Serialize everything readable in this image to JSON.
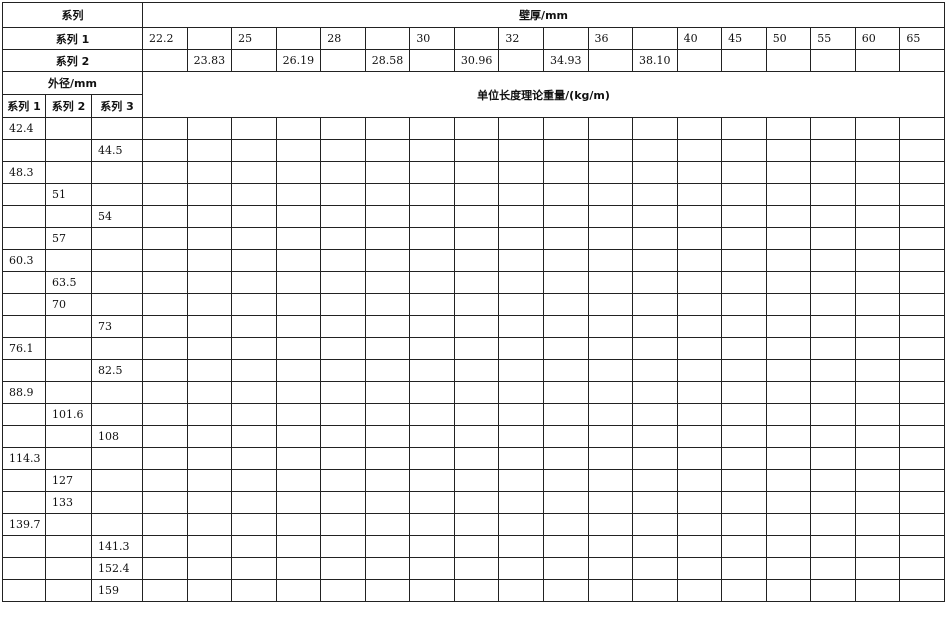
{
  "header": {
    "series_label": "系列",
    "wall_thickness_label": "壁厚/mm",
    "series1_label": "系列 1",
    "series2_label": "系列 2",
    "outer_diameter_label": "外径/mm",
    "weight_label": "单位长度理论重量/(kg/m)",
    "od_series_labels": [
      "系列 1",
      "系列 2",
      "系列 3"
    ]
  },
  "wall_thickness": {
    "series1": [
      "22.2",
      "",
      "25",
      "",
      "28",
      "",
      "30",
      "",
      "32",
      "",
      "36",
      "",
      "40",
      "45",
      "50",
      "55",
      "60",
      "65"
    ],
    "series2": [
      "",
      "23.83",
      "",
      "26.19",
      "",
      "28.58",
      "",
      "30.96",
      "",
      "34.93",
      "",
      "38.10",
      "",
      "",
      "",
      "",
      "",
      ""
    ]
  },
  "outer_diameters": [
    [
      "42.4",
      "",
      ""
    ],
    [
      "",
      "",
      "44.5"
    ],
    [
      "48.3",
      "",
      ""
    ],
    [
      "",
      "51",
      ""
    ],
    [
      "",
      "",
      "54"
    ],
    [
      "",
      "57",
      ""
    ],
    [
      "60.3",
      "",
      ""
    ],
    [
      "",
      "63.5",
      ""
    ],
    [
      "",
      "70",
      ""
    ],
    [
      "",
      "",
      "73"
    ],
    [
      "76.1",
      "",
      ""
    ],
    [
      "",
      "",
      "82.5"
    ],
    [
      "88.9",
      "",
      ""
    ],
    [
      "",
      "101.6",
      ""
    ],
    [
      "",
      "",
      "108"
    ],
    [
      "114.3",
      "",
      ""
    ],
    [
      "",
      "127",
      ""
    ],
    [
      "",
      "133",
      ""
    ],
    [
      "139.7",
      "",
      ""
    ],
    [
      "",
      "",
      "141.3"
    ],
    [
      "",
      "",
      "152.4"
    ],
    [
      "",
      "",
      "159"
    ]
  ]
}
